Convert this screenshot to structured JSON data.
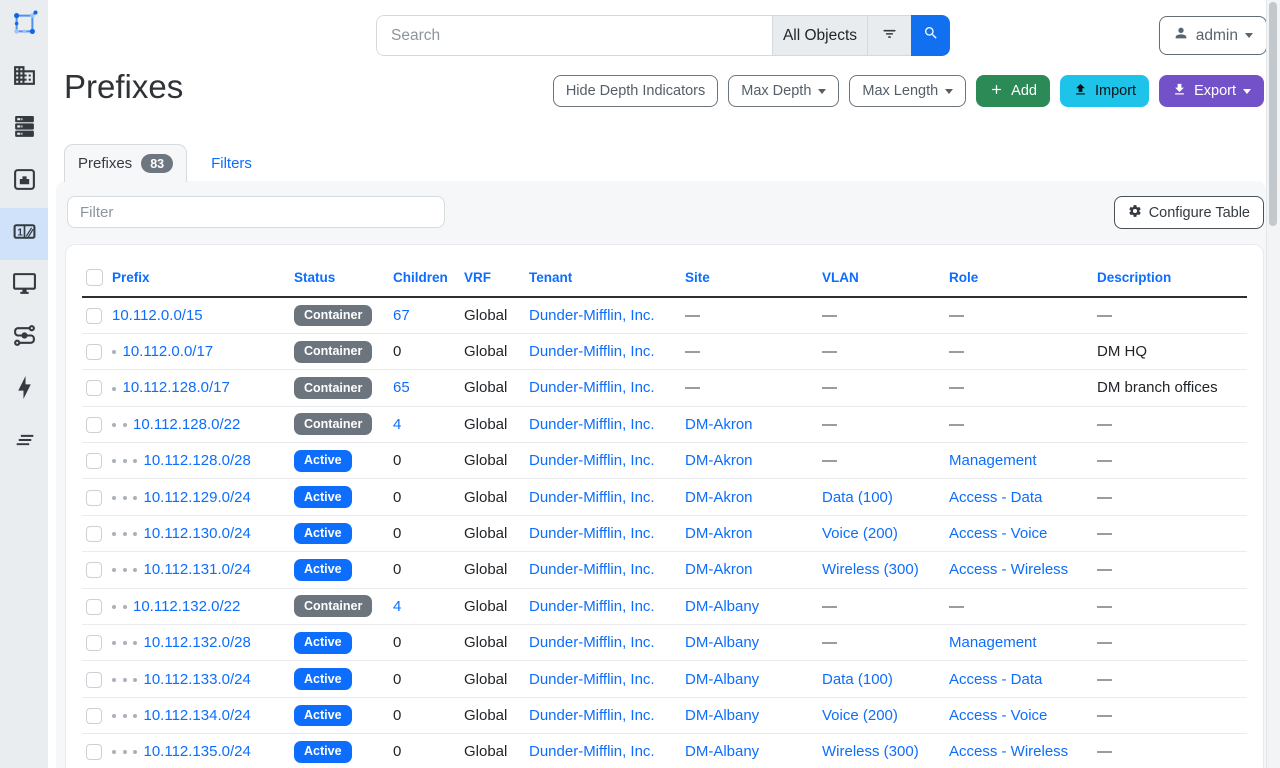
{
  "topbar": {
    "search_placeholder": "Search",
    "search_scope": "All Objects",
    "user": "admin"
  },
  "page": {
    "title": "Prefixes",
    "hide_depth_label": "Hide Depth Indicators",
    "max_depth_label": "Max Depth",
    "max_length_label": "Max Length",
    "add_label": "Add",
    "import_label": "Import",
    "export_label": "Export"
  },
  "tabs": {
    "prefixes_label": "Prefixes",
    "prefixes_count": "83",
    "filters_label": "Filters"
  },
  "pane": {
    "filter_placeholder": "Filter",
    "configure_label": "Configure Table"
  },
  "table": {
    "columns": [
      "Prefix",
      "Status",
      "Children",
      "VRF",
      "Tenant",
      "Site",
      "VLAN",
      "Role",
      "Description"
    ],
    "rows": [
      {
        "depth": 0,
        "prefix": "10.112.0.0/15",
        "status": "Container",
        "children": "67",
        "children_link": true,
        "vrf": "Global",
        "tenant": "Dunder-Mifflin, Inc.",
        "site": "",
        "vlan": "",
        "role": "",
        "description": ""
      },
      {
        "depth": 1,
        "prefix": "10.112.0.0/17",
        "status": "Container",
        "children": "0",
        "children_link": false,
        "vrf": "Global",
        "tenant": "Dunder-Mifflin, Inc.",
        "site": "",
        "vlan": "",
        "role": "",
        "description": "DM HQ"
      },
      {
        "depth": 1,
        "prefix": "10.112.128.0/17",
        "status": "Container",
        "children": "65",
        "children_link": true,
        "vrf": "Global",
        "tenant": "Dunder-Mifflin, Inc.",
        "site": "",
        "vlan": "",
        "role": "",
        "description": "DM branch offices"
      },
      {
        "depth": 2,
        "prefix": "10.112.128.0/22",
        "status": "Container",
        "children": "4",
        "children_link": true,
        "vrf": "Global",
        "tenant": "Dunder-Mifflin, Inc.",
        "site": "DM-Akron",
        "vlan": "",
        "role": "",
        "description": ""
      },
      {
        "depth": 3,
        "prefix": "10.112.128.0/28",
        "status": "Active",
        "children": "0",
        "children_link": false,
        "vrf": "Global",
        "tenant": "Dunder-Mifflin, Inc.",
        "site": "DM-Akron",
        "vlan": "",
        "role": "Management",
        "description": ""
      },
      {
        "depth": 3,
        "prefix": "10.112.129.0/24",
        "status": "Active",
        "children": "0",
        "children_link": false,
        "vrf": "Global",
        "tenant": "Dunder-Mifflin, Inc.",
        "site": "DM-Akron",
        "vlan": "Data (100)",
        "role": "Access - Data",
        "description": ""
      },
      {
        "depth": 3,
        "prefix": "10.112.130.0/24",
        "status": "Active",
        "children": "0",
        "children_link": false,
        "vrf": "Global",
        "tenant": "Dunder-Mifflin, Inc.",
        "site": "DM-Akron",
        "vlan": "Voice (200)",
        "role": "Access - Voice",
        "description": ""
      },
      {
        "depth": 3,
        "prefix": "10.112.131.0/24",
        "status": "Active",
        "children": "0",
        "children_link": false,
        "vrf": "Global",
        "tenant": "Dunder-Mifflin, Inc.",
        "site": "DM-Akron",
        "vlan": "Wireless (300)",
        "role": "Access - Wireless",
        "description": ""
      },
      {
        "depth": 2,
        "prefix": "10.112.132.0/22",
        "status": "Container",
        "children": "4",
        "children_link": true,
        "vrf": "Global",
        "tenant": "Dunder-Mifflin, Inc.",
        "site": "DM-Albany",
        "vlan": "",
        "role": "",
        "description": ""
      },
      {
        "depth": 3,
        "prefix": "10.112.132.0/28",
        "status": "Active",
        "children": "0",
        "children_link": false,
        "vrf": "Global",
        "tenant": "Dunder-Mifflin, Inc.",
        "site": "DM-Albany",
        "vlan": "",
        "role": "Management",
        "description": ""
      },
      {
        "depth": 3,
        "prefix": "10.112.133.0/24",
        "status": "Active",
        "children": "0",
        "children_link": false,
        "vrf": "Global",
        "tenant": "Dunder-Mifflin, Inc.",
        "site": "DM-Albany",
        "vlan": "Data (100)",
        "role": "Access - Data",
        "description": ""
      },
      {
        "depth": 3,
        "prefix": "10.112.134.0/24",
        "status": "Active",
        "children": "0",
        "children_link": false,
        "vrf": "Global",
        "tenant": "Dunder-Mifflin, Inc.",
        "site": "DM-Albany",
        "vlan": "Voice (200)",
        "role": "Access - Voice",
        "description": ""
      },
      {
        "depth": 3,
        "prefix": "10.112.135.0/24",
        "status": "Active",
        "children": "0",
        "children_link": false,
        "vrf": "Global",
        "tenant": "Dunder-Mifflin, Inc.",
        "site": "DM-Albany",
        "vlan": "Wireless (300)",
        "role": "Access - Wireless",
        "description": ""
      }
    ]
  },
  "colors": {
    "link": "#0d6efd",
    "status": {
      "Container": "#6c757d",
      "Active": "#0d6efd"
    },
    "add_button": "#2b8a55",
    "import_button": "#1ec3ea",
    "export_button": "#7352c9",
    "sidebar_active_bg": "#cfe2fa"
  },
  "icons": {
    "sidebar": [
      "netbox-logo",
      "organization",
      "devices",
      "connections",
      "ipam",
      "virtualization",
      "circuits",
      "power",
      "customization"
    ],
    "search": "magnifier",
    "filter": "funnel-lines",
    "user": "person",
    "add": "plus",
    "import": "upload-arrow",
    "export": "download-arrow",
    "configure": "gear",
    "dropdown": "caret-down"
  }
}
